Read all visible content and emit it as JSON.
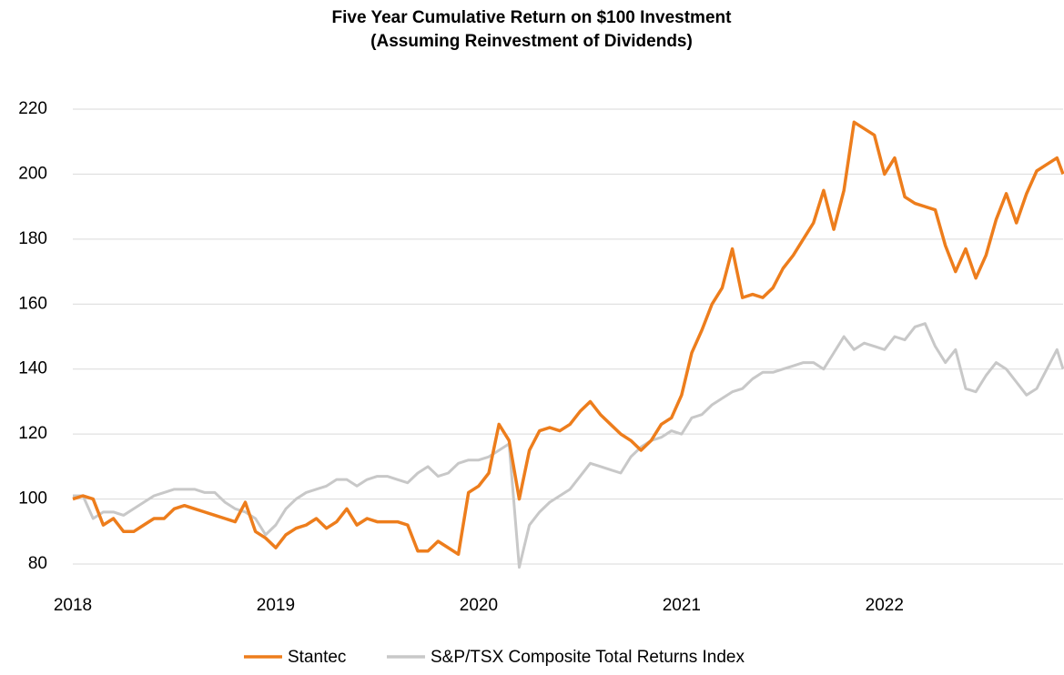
{
  "chart_data": {
    "type": "line",
    "title": "Five Year Cumulative Return on $100 Investment",
    "subtitle": "(Assuming Reinvestment of Dividends)",
    "x": [
      2018,
      2018.05,
      2018.1,
      2018.15,
      2018.2,
      2018.25,
      2018.3,
      2018.35,
      2018.4,
      2018.45,
      2018.5,
      2018.55,
      2018.6,
      2018.65,
      2018.7,
      2018.75,
      2018.8,
      2018.85,
      2018.9,
      2018.95,
      2019,
      2019.05,
      2019.1,
      2019.15,
      2019.2,
      2019.25,
      2019.3,
      2019.35,
      2019.4,
      2019.45,
      2019.5,
      2019.55,
      2019.6,
      2019.65,
      2019.7,
      2019.75,
      2019.8,
      2019.85,
      2019.9,
      2019.95,
      2020,
      2020.05,
      2020.1,
      2020.15,
      2020.2,
      2020.25,
      2020.3,
      2020.35,
      2020.4,
      2020.45,
      2020.5,
      2020.55,
      2020.6,
      2020.65,
      2020.7,
      2020.75,
      2020.8,
      2020.85,
      2020.9,
      2020.95,
      2021,
      2021.05,
      2021.1,
      2021.15,
      2021.2,
      2021.25,
      2021.3,
      2021.35,
      2021.4,
      2021.45,
      2021.5,
      2021.55,
      2021.6,
      2021.65,
      2021.7,
      2021.75,
      2021.8,
      2021.85,
      2021.9,
      2021.95,
      2022,
      2022.05,
      2022.1,
      2022.15,
      2022.2,
      2022.25,
      2022.3,
      2022.35,
      2022.4,
      2022.45,
      2022.5,
      2022.55,
      2022.6,
      2022.65,
      2022.7,
      2022.75,
      2022.8,
      2022.85,
      2022.88
    ],
    "series": [
      {
        "name": "Stantec",
        "color": "#ed7d1c",
        "values": [
          100,
          101,
          100,
          92,
          94,
          90,
          90,
          92,
          94,
          94,
          97,
          98,
          97,
          96,
          95,
          94,
          93,
          99,
          90,
          88,
          85,
          89,
          91,
          92,
          94,
          91,
          93,
          97,
          92,
          94,
          93,
          93,
          93,
          92,
          84,
          84,
          87,
          85,
          83,
          102,
          104,
          108,
          123,
          118,
          100,
          115,
          121,
          122,
          121,
          123,
          127,
          130,
          126,
          123,
          120,
          118,
          115,
          118,
          123,
          125,
          132,
          145,
          152,
          160,
          165,
          177,
          162,
          163,
          162,
          165,
          171,
          175,
          180,
          185,
          195,
          183,
          195,
          216,
          214,
          212,
          200,
          205,
          193,
          191,
          190,
          189,
          178,
          170,
          177,
          168,
          175,
          186,
          194,
          185,
          194,
          201,
          203,
          205,
          200
        ]
      },
      {
        "name": "S&P/TSX Composite Total Returns Index",
        "color": "#c8c8c8",
        "values": [
          101,
          101,
          94,
          96,
          96,
          95,
          97,
          99,
          101,
          102,
          103,
          103,
          103,
          102,
          102,
          99,
          97,
          96,
          94,
          89,
          92,
          97,
          100,
          102,
          103,
          104,
          106,
          106,
          104,
          106,
          107,
          107,
          106,
          105,
          108,
          110,
          107,
          108,
          111,
          112,
          112,
          113,
          115,
          117,
          79,
          92,
          96,
          99,
          101,
          103,
          107,
          111,
          110,
          109,
          108,
          113,
          116,
          118,
          119,
          121,
          120,
          125,
          126,
          129,
          131,
          133,
          134,
          137,
          139,
          139,
          140,
          141,
          142,
          142,
          140,
          145,
          150,
          146,
          148,
          147,
          146,
          150,
          149,
          153,
          154,
          147,
          142,
          146,
          134,
          133,
          138,
          142,
          140,
          136,
          132,
          134,
          140,
          146,
          140
        ]
      }
    ],
    "xlim": [
      2018,
      2022.88
    ],
    "xticks": [
      2018,
      2019,
      2020,
      2021,
      2022
    ],
    "ylim": [
      80,
      220
    ],
    "yticks": [
      80,
      100,
      120,
      140,
      160,
      180,
      200,
      220
    ],
    "grid": true,
    "legend": "bottom"
  }
}
